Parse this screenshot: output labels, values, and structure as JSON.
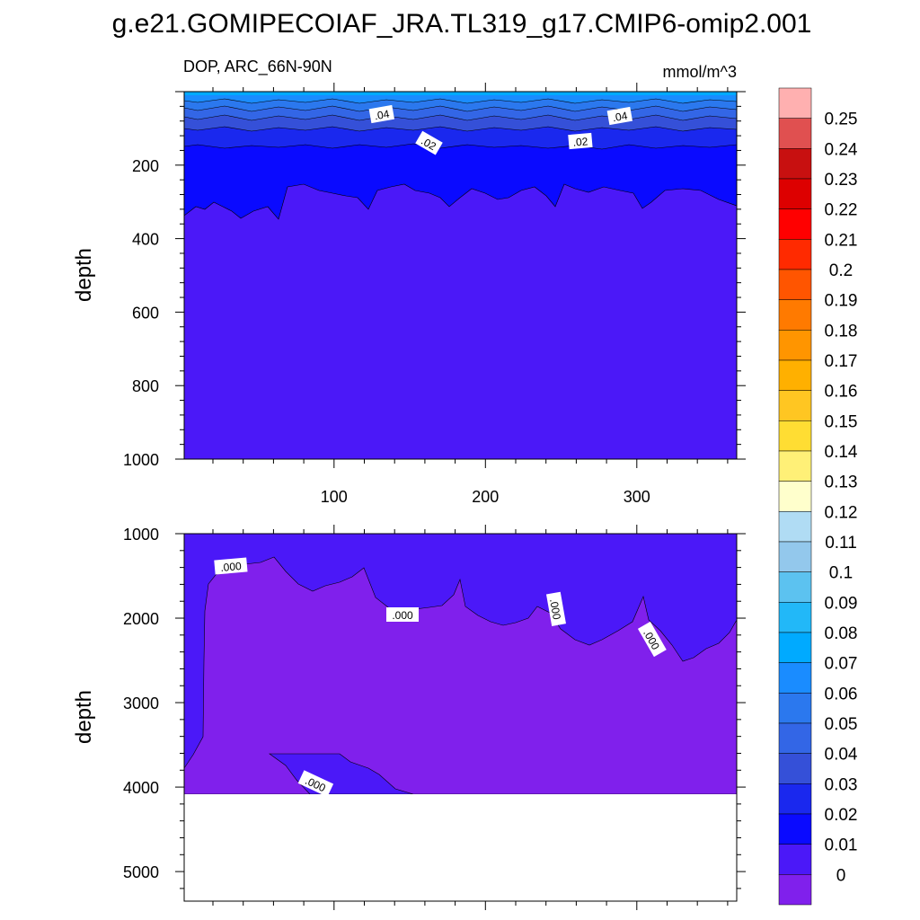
{
  "figure": {
    "title": "g.e21.GOMIPECOIAF_JRA.TL319_g17.CMIP6-omip2.001",
    "subtitle_left": "DOP, ARC_66N-90N",
    "units": "mmol/m^3"
  },
  "colorbar": {
    "labels": [
      "0.25",
      "0.24",
      "0.23",
      "0.22",
      "0.21",
      "0.2",
      "0.19",
      "0.18",
      "0.17",
      "0.16",
      "0.15",
      "0.14",
      "0.13",
      "0.12",
      "0.11",
      "0.1",
      "0.09",
      "0.08",
      "0.07",
      "0.06",
      "0.05",
      "0.04",
      "0.03",
      "0.02",
      "0.01",
      "0"
    ],
    "colors": [
      "#ffb0b0",
      "#e05050",
      "#c81010",
      "#dd0000",
      "#ff0000",
      "#ff2a00",
      "#ff5500",
      "#ff7a00",
      "#ff9500",
      "#ffb000",
      "#ffc622",
      "#ffdd33",
      "#fff077",
      "#ffffcc",
      "#b0dcf4",
      "#93c8ec",
      "#5cc2f0",
      "#22b8f8",
      "#00aaff",
      "#1a8cff",
      "#2b78ee",
      "#3366e6",
      "#3550d8",
      "#1a28ee",
      "#0a0aff",
      "#4b18f8",
      "#8020ec"
    ]
  },
  "chart_data": [
    {
      "type": "contour",
      "panel": "top",
      "xlabel": "",
      "ylabel": "depth",
      "x_ticks": [
        "100",
        "200",
        "300"
      ],
      "xlim": [
        1,
        366
      ],
      "y_ticks": [
        "200",
        "400",
        "600",
        "800",
        "1000"
      ],
      "ylim": [
        0,
        1000
      ],
      "y_inverted": true,
      "contour_labels": [
        ".04",
        ".04",
        ".02",
        ".02"
      ],
      "fill_levels": [
        {
          "level": 0.05,
          "depth_top": 0,
          "depth_bottom": 15
        },
        {
          "level": 0.04,
          "depth_top": 15,
          "depth_bottom": 60
        },
        {
          "level": 0.03,
          "depth_top": 60,
          "depth_bottom": 100
        },
        {
          "level": 0.02,
          "depth_top": 100,
          "depth_bottom": 150
        },
        {
          "level": 0.01,
          "depth_top": 150,
          "depth_bottom": 300
        },
        {
          "level": 0.0,
          "depth_top": 300,
          "depth_bottom": 1000
        }
      ]
    },
    {
      "type": "contour",
      "panel": "bottom",
      "xlabel": "",
      "ylabel": "depth",
      "x_ticks": [],
      "xlim": [
        1,
        366
      ],
      "y_ticks": [
        "1000",
        "2000",
        "3000",
        "4000",
        "5000"
      ],
      "ylim": [
        1000,
        5350
      ],
      "y_inverted": true,
      "contour_labels": [
        ".000",
        ".000",
        ".000",
        ".000",
        ".000"
      ],
      "fill_levels": [
        {
          "level": 0.0,
          "region": "upper and left margin"
        },
        {
          "level": -0.01,
          "region": "interior"
        }
      ],
      "valid_depth_limit": 4120
    }
  ]
}
